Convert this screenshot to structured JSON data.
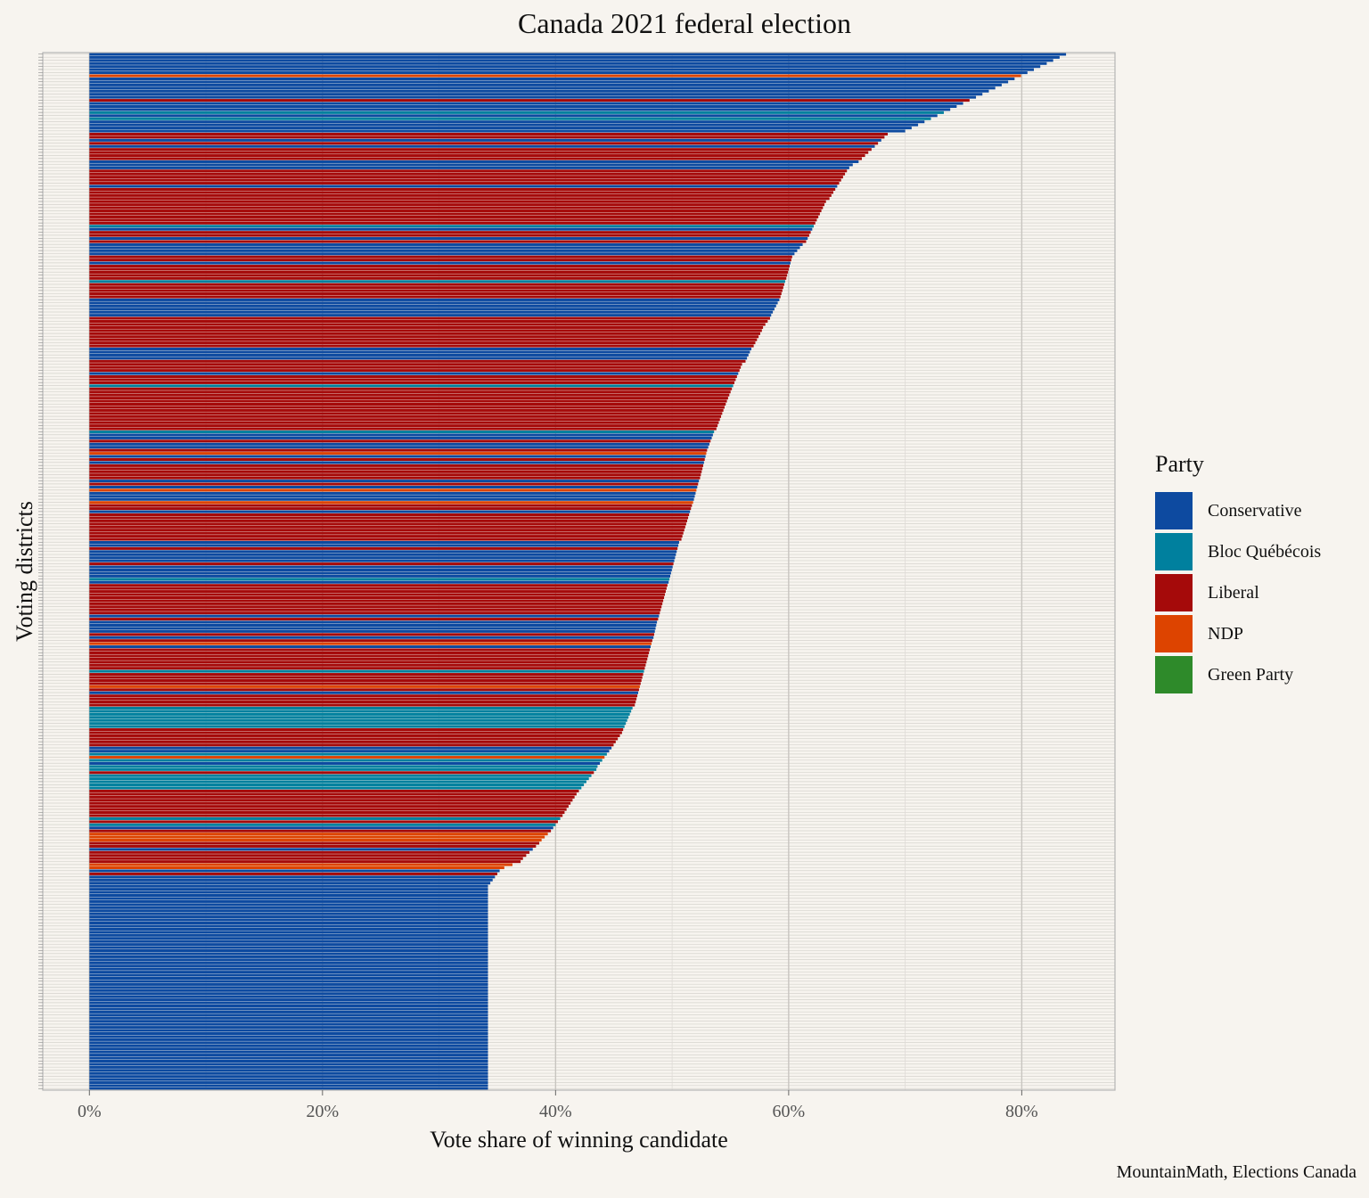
{
  "colors": {
    "background": "#f7f4ef",
    "panel_border": "#b5b5b5",
    "gridline": "#d6d3ce"
  },
  "chart_data": {
    "type": "bar",
    "orientation": "horizontal",
    "title": "Canada 2021 federal election",
    "xlabel": "Vote share of winning candidate",
    "ylabel": "Voting districts",
    "caption": "MountainMath, Elections Canada",
    "xlim": [
      -0.04,
      0.88
    ],
    "x_ticks": [
      0,
      0.2,
      0.4,
      0.6,
      0.8
    ],
    "x_tick_labels": [
      "0%",
      "20%",
      "40%",
      "60%",
      "80%"
    ],
    "y_tick_labels": "none",
    "n_districts": 338,
    "legend_title": "Party",
    "legend_position": "right",
    "parties": [
      {
        "name": "Conservative",
        "color": "#0d4aa0"
      },
      {
        "name": "Bloc Québécois",
        "color": "#00809e"
      },
      {
        "name": "Liberal",
        "color": "#a50a0a"
      },
      {
        "name": "NDP",
        "color": "#dd4400"
      },
      {
        "name": "Green Party",
        "color": "#2e8a2a"
      }
    ],
    "segments": [
      {
        "party": "Conservative",
        "n": 26,
        "from": 0.838,
        "to": 0.7
      },
      {
        "party": "Liberal",
        "n": 10,
        "from": 0.685,
        "to": 0.66
      },
      {
        "party": "Conservative",
        "n": 2,
        "from": 0.655,
        "to": 0.652
      },
      {
        "party": "Liberal",
        "n": 10,
        "from": 0.65,
        "to": 0.635
      },
      {
        "party": "Liberal",
        "n": 14,
        "from": 0.632,
        "to": 0.615
      },
      {
        "party": "Conservative",
        "n": 4,
        "from": 0.612,
        "to": 0.605
      },
      {
        "party": "Liberal",
        "n": 8,
        "from": 0.603,
        "to": 0.598
      },
      {
        "party": "Liberal",
        "n": 6,
        "from": 0.597,
        "to": 0.593
      },
      {
        "party": "Conservative",
        "n": 6,
        "from": 0.592,
        "to": 0.585
      },
      {
        "party": "Liberal",
        "n": 4,
        "from": 0.584,
        "to": 0.578
      },
      {
        "party": "Liberal",
        "n": 6,
        "from": 0.577,
        "to": 0.57
      },
      {
        "party": "Conservative",
        "n": 5,
        "from": 0.568,
        "to": 0.563
      },
      {
        "party": "Liberal",
        "n": 12,
        "from": 0.56,
        "to": 0.548
      },
      {
        "party": "Liberal",
        "n": 10,
        "from": 0.547,
        "to": 0.538
      },
      {
        "party": "Conservative",
        "n": 6,
        "from": 0.536,
        "to": 0.531
      },
      {
        "party": "Liberal",
        "n": 10,
        "from": 0.53,
        "to": 0.524
      },
      {
        "party": "Conservative",
        "n": 8,
        "from": 0.523,
        "to": 0.518
      },
      {
        "party": "Liberal",
        "n": 12,
        "from": 0.517,
        "to": 0.508
      },
      {
        "party": "Conservative",
        "n": 14,
        "from": 0.506,
        "to": 0.497
      },
      {
        "party": "Liberal",
        "n": 12,
        "from": 0.496,
        "to": 0.488
      },
      {
        "party": "Conservative",
        "n": 6,
        "from": 0.487,
        "to": 0.484
      },
      {
        "party": "Liberal",
        "n": 22,
        "from": 0.483,
        "to": 0.468
      },
      {
        "party": "Bloc Québécois",
        "n": 8,
        "from": 0.466,
        "to": 0.458
      },
      {
        "party": "Liberal",
        "n": 6,
        "from": 0.457,
        "to": 0.448
      },
      {
        "party": "Bloc Québécois",
        "n": 6,
        "from": 0.446,
        "to": 0.436
      },
      {
        "party": "Bloc Québécois",
        "n": 8,
        "from": 0.435,
        "to": 0.42
      },
      {
        "party": "Liberal",
        "n": 8,
        "from": 0.418,
        "to": 0.406
      },
      {
        "party": "Bloc Québécois",
        "n": 4,
        "from": 0.404,
        "to": 0.398
      },
      {
        "party": "NDP",
        "n": 4,
        "from": 0.396,
        "to": 0.388
      },
      {
        "party": "Liberal",
        "n": 6,
        "from": 0.386,
        "to": 0.372
      },
      {
        "party": "NDP",
        "n": 3,
        "from": 0.37,
        "to": 0.356
      },
      {
        "party": "Conservative",
        "n": 6,
        "from": 0.352,
        "to": 0.342
      }
    ],
    "pattern": [
      "Conservative",
      "Liberal",
      "Liberal",
      "Conservative",
      "Bloc Québécois",
      "Liberal",
      "NDP",
      "Liberal",
      "Conservative"
    ],
    "pattern_chance": 0.32
  }
}
